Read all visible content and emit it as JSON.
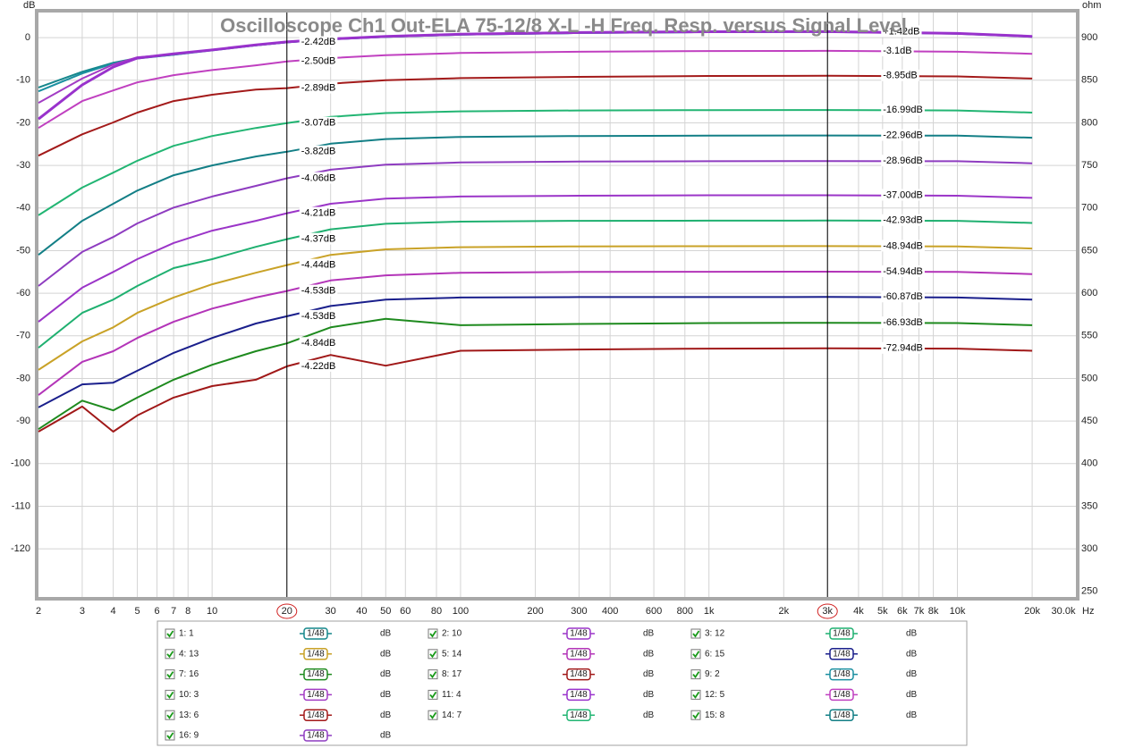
{
  "chart_data": {
    "type": "line",
    "title": "Oscilloscope Ch1 Out-ELA 75-12/8 X-L -H Freq. Resp. versus Signal Level",
    "y_unit": "dB",
    "y2_unit": "ohm",
    "x_unit": "Hz",
    "log_x": true,
    "grid": true,
    "xlim": [
      2,
      30000
    ],
    "ylim": [
      -131.3,
      5.9
    ],
    "y2lim": [
      243.5,
      929.5
    ],
    "xticks": [
      2,
      3,
      4,
      5,
      6,
      7,
      8,
      10,
      20,
      30,
      40,
      50,
      60,
      80,
      100,
      200,
      300,
      400,
      600,
      800,
      {
        "value": 1000,
        "label": "1k"
      },
      {
        "value": 2000,
        "label": "2k"
      },
      {
        "value": 3000,
        "label": "3k"
      },
      {
        "value": 4000,
        "label": "4k"
      },
      {
        "value": 5000,
        "label": "5k"
      },
      {
        "value": 6000,
        "label": "6k"
      },
      {
        "value": 7000,
        "label": "7k"
      },
      {
        "value": 8000,
        "label": "8k"
      },
      {
        "value": 10000,
        "label": "10k"
      },
      {
        "value": 20000,
        "label": "20k"
      },
      {
        "value": 30000,
        "label": "30.0k"
      }
    ],
    "yticks": [
      0,
      -10,
      -20,
      -30,
      -40,
      -50,
      -60,
      -70,
      -80,
      -90,
      -100,
      -110,
      -120
    ],
    "y2ticks": [
      900,
      850,
      800,
      750,
      700,
      650,
      600,
      550,
      500,
      450,
      400,
      350,
      300,
      250
    ],
    "cursors": [
      20,
      3000
    ],
    "x": [
      2,
      3,
      4,
      5,
      7,
      10,
      15,
      20,
      30,
      50,
      100,
      300,
      1000,
      3000,
      10000,
      20000
    ],
    "series": [
      {
        "name": "1: 1",
        "color": "#15878c",
        "smoothing": "1/48",
        "unit": "dB",
        "values": [
          -11.7,
          -8,
          -5.9,
          -4.8,
          -4,
          -2.9,
          -1.8,
          -1.1,
          -0.4,
          0.2,
          0.7,
          1.1,
          1.3,
          1.35,
          0.9,
          0.2
        ]
      },
      {
        "name": "2: 10",
        "color": "#9b35c8",
        "smoothing": "1/48",
        "unit": "dB",
        "cursor_labels": [
          "-4.21dB",
          "-37.00dB"
        ],
        "values": [
          -66.7,
          -58.7,
          -55,
          -52,
          -48.2,
          -45.3,
          -43,
          -41.21,
          -39,
          -37.8,
          -37.3,
          -37.1,
          -37,
          -37,
          -37.1,
          -37.6
        ]
      },
      {
        "name": "3: 12",
        "color": "#1fb070",
        "smoothing": "1/48",
        "unit": "dB",
        "cursor_labels": [
          "-4.37dB",
          "-42.93dB"
        ],
        "values": [
          -72.8,
          -64.6,
          -61.5,
          -58.3,
          -54.1,
          -52,
          -49.1,
          -47.3,
          -45,
          -43.7,
          -43.2,
          -43,
          -42.95,
          -42.93,
          -43,
          -43.5
        ]
      },
      {
        "name": "4: 13",
        "color": "#c9a227",
        "smoothing": "1/48",
        "unit": "dB",
        "cursor_labels": [
          "-4.44dB",
          "-48.94dB"
        ],
        "values": [
          -78,
          -71.3,
          -68,
          -64.6,
          -61,
          -57.9,
          -55.2,
          -53.38,
          -51,
          -49.7,
          -49.2,
          -49,
          -48.95,
          -48.94,
          -49,
          -49.5
        ]
      },
      {
        "name": "5: 14",
        "color": "#b334b8",
        "smoothing": "1/48",
        "unit": "dB",
        "cursor_labels": [
          "-4.53dB",
          "-54.94dB"
        ],
        "values": [
          -83.9,
          -76.1,
          -73.6,
          -70.5,
          -66.7,
          -63.6,
          -61,
          -59.47,
          -57,
          -55.8,
          -55.2,
          -55,
          -54.95,
          -54.94,
          -55,
          -55.5
        ]
      },
      {
        "name": "6: 15",
        "color": "#1a1f8c",
        "smoothing": "1/48",
        "unit": "dB",
        "cursor_labels": [
          "-4.53dB",
          "-60.87dB"
        ],
        "values": [
          -86.8,
          -81.4,
          -81,
          -78.2,
          -74,
          -70.5,
          -67.1,
          -65.4,
          -63,
          -61.5,
          -61,
          -60.9,
          -60.9,
          -60.87,
          -61,
          -61.5
        ]
      },
      {
        "name": "7: 16",
        "color": "#1e8a1e",
        "smoothing": "1/48",
        "unit": "dB",
        "cursor_labels": [
          "-4.84dB",
          "-66.93dB"
        ],
        "values": [
          -91.9,
          -85.2,
          -87.5,
          -84.5,
          -80.3,
          -76.8,
          -73.6,
          -71.77,
          -68,
          -66,
          -67.5,
          -67.2,
          -67,
          -66.93,
          -67,
          -67.5
        ]
      },
      {
        "name": "8: 17",
        "color": "#a01818",
        "smoothing": "1/48",
        "unit": "dB",
        "cursor_labels": [
          "-4.22dB",
          "-72.94dB"
        ],
        "values": [
          -92.5,
          -86.6,
          -92.5,
          -88.7,
          -84.5,
          -81.8,
          -80.3,
          -77.16,
          -74.5,
          -77,
          -73.5,
          -73.2,
          -73,
          -72.94,
          -73,
          -73.5
        ]
      },
      {
        "name": "9: 2",
        "color": "#1a8fa0",
        "smoothing": "1/48",
        "unit": "dB",
        "values": [
          -12.6,
          -8.4,
          -6.1,
          -4.9,
          -4,
          -3,
          -1.8,
          -1.1,
          -0.4,
          0.2,
          0.7,
          1.1,
          1.3,
          1.38,
          0.95,
          0.25
        ]
      },
      {
        "name": "10: 3",
        "color": "#a23cc4",
        "smoothing": "1/48",
        "unit": "dB",
        "values": [
          -15.3,
          -9.6,
          -6.3,
          -4.6,
          -3.9,
          -2.9,
          -1.7,
          -1,
          -0.3,
          0.3,
          0.8,
          1.2,
          1.4,
          1.4,
          1,
          0.3
        ]
      },
      {
        "name": "11: 4",
        "color": "#9932cc",
        "smoothing": "1/48",
        "unit": "dB",
        "cursor_labels": [
          "-2.42dB",
          "+1.42dB"
        ],
        "values": [
          -19.1,
          -11.1,
          -6.9,
          -4.8,
          -3.8,
          -2.9,
          -1.7,
          -1,
          -0.3,
          0.3,
          0.8,
          1.2,
          1.4,
          1.42,
          1,
          0.3
        ]
      },
      {
        "name": "12: 5",
        "color": "#c040c0",
        "smoothing": "1/48",
        "unit": "dB",
        "cursor_labels": [
          "-2.50dB",
          "-3.1dB"
        ],
        "values": [
          -21.2,
          -14.9,
          -12.4,
          -10.5,
          -8.8,
          -7.6,
          -6.5,
          -5.6,
          -4.8,
          -4.1,
          -3.6,
          -3.3,
          -3.15,
          -3.1,
          -3.3,
          -3.8
        ]
      },
      {
        "name": "13: 6",
        "color": "#a31a1a",
        "smoothing": "1/48",
        "unit": "dB",
        "cursor_labels": [
          "-2.89dB",
          "-8.95dB"
        ],
        "values": [
          -27.7,
          -22.7,
          -19.9,
          -17.6,
          -14.9,
          -13.4,
          -12.2,
          -11.84,
          -10.8,
          -10,
          -9.5,
          -9.2,
          -9,
          -8.95,
          -9.1,
          -9.6
        ]
      },
      {
        "name": "14: 7",
        "color": "#22b573",
        "smoothing": "1/48",
        "unit": "dB",
        "cursor_labels": [
          "-3.07dB",
          "-16.99dB"
        ],
        "values": [
          -41.7,
          -35.2,
          -31.7,
          -28.9,
          -25.4,
          -23.1,
          -21.2,
          -20.06,
          -18.6,
          -17.7,
          -17.3,
          -17.1,
          -17,
          -16.99,
          -17.1,
          -17.6
        ]
      },
      {
        "name": "15: 8",
        "color": "#137f86",
        "smoothing": "1/48",
        "unit": "dB",
        "cursor_labels": [
          "-3.82dB",
          "-22.96dB"
        ],
        "values": [
          -51,
          -43,
          -39,
          -35.9,
          -32.3,
          -30,
          -27.9,
          -26.78,
          -24.9,
          -23.8,
          -23.3,
          -23.1,
          -23,
          -22.96,
          -23,
          -23.5
        ]
      },
      {
        "name": "16: 9",
        "color": "#8e3cc0",
        "smoothing": "1/48",
        "unit": "dB",
        "cursor_labels": [
          "-4.06dB",
          "-28.96dB"
        ],
        "values": [
          -58.3,
          -50.3,
          -46.8,
          -43.6,
          -39.9,
          -37.3,
          -34.8,
          -33.02,
          -31,
          -29.8,
          -29.3,
          -29.1,
          -29,
          -28.96,
          -29,
          -29.5
        ]
      }
    ]
  }
}
